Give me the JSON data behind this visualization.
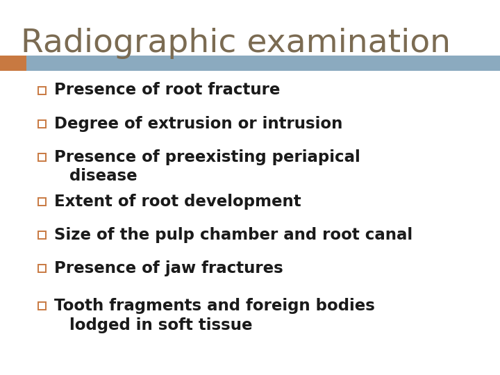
{
  "title": "Radiographic examination",
  "title_color": "#7B6B52",
  "title_fontsize": 34,
  "background_color": "#FFFFFF",
  "header_bar_color": "#8BAABF",
  "header_bar_left_accent": "#C87941",
  "bullet_color": "#C87941",
  "text_color": "#1A1A1A",
  "bullet_fontsize": 16.5,
  "items": [
    {
      "text": "Presence of root fracture",
      "multiline": false
    },
    {
      "text": "Degree of extrusion or intrusion",
      "multiline": false
    },
    {
      "text": "Presence of preexisting periapical",
      "continuation": "disease",
      "multiline": true
    },
    {
      "text": "Extent of root development",
      "multiline": false
    },
    {
      "text": "Size of the pulp chamber and root canal",
      "multiline": false
    },
    {
      "text": "Presence of jaw fractures",
      "multiline": false
    },
    {
      "text": "Tooth fragments and foreign bodies",
      "continuation": "lodged in soft tissue",
      "multiline": true
    }
  ]
}
